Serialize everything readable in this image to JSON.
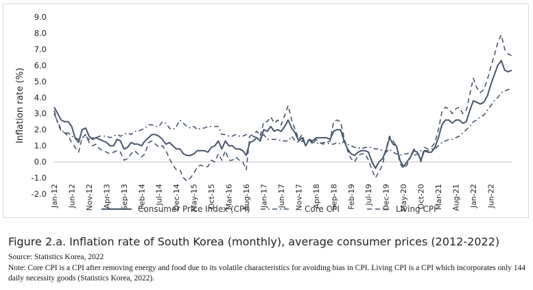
{
  "chart_data": {
    "type": "line",
    "ylabel": "Inflation rate (%)",
    "ylim": [
      -2.0,
      9.0
    ],
    "yticks": [
      "9.0",
      "8.0",
      "7.0",
      "6.0",
      "5.0",
      "4.0",
      "3.0",
      "2.0",
      "1.0",
      "0.0",
      "-1.0",
      "-2.0"
    ],
    "x_start": "Jan-12",
    "x_tick_labels": [
      "Jan-12",
      "Jun-12",
      "Nov-12",
      "Apr-13",
      "Sep-13",
      "Feb-14",
      "Jul-14",
      "Dec-14",
      "May-15",
      "Oct-15",
      "Mar-16",
      "Aug-16",
      "Jan-17",
      "Jun-17",
      "Nov-17",
      "Apr-18",
      "Sep-18",
      "Feb-19",
      "Jul-19",
      "Dec-19",
      "May-20",
      "Oct-20",
      "Mar-21",
      "Aug-21",
      "Jan-22",
      "Jun-22"
    ],
    "grid": false,
    "legend_position": "bottom",
    "series": [
      {
        "name": "Consumer Price Index (CPI)",
        "color": "#44546a",
        "values": [
          3.4,
          3.0,
          2.6,
          2.5,
          2.5,
          2.2,
          1.5,
          1.2,
          2.0,
          2.1,
          1.6,
          1.4,
          1.5,
          1.4,
          1.3,
          1.2,
          1.0,
          1.0,
          1.4,
          1.3,
          0.8,
          0.9,
          1.2,
          1.1,
          1.1,
          1.0,
          1.3,
          1.5,
          1.7,
          1.7,
          1.6,
          1.4,
          1.1,
          1.2,
          1.0,
          0.8,
          0.8,
          0.5,
          0.4,
          0.4,
          0.5,
          0.7,
          0.7,
          0.7,
          0.6,
          0.9,
          1.0,
          1.3,
          0.8,
          1.3,
          1.0,
          1.0,
          0.8,
          0.8,
          0.7,
          0.4,
          1.2,
          1.3,
          1.5,
          1.3,
          2.0,
          1.9,
          2.2,
          1.9,
          2.0,
          1.9,
          2.2,
          2.6,
          2.1,
          1.8,
          1.3,
          1.5,
          1.0,
          1.4,
          1.3,
          1.5,
          1.5,
          1.5,
          1.5,
          1.4,
          1.9,
          2.0,
          2.0,
          1.3,
          0.8,
          0.5,
          0.4,
          0.6,
          0.7,
          0.7,
          0.6,
          0.0,
          -0.4,
          0.0,
          0.2,
          0.7,
          1.5,
          1.1,
          1.0,
          0.1,
          -0.3,
          0.0,
          0.3,
          0.7,
          0.6,
          0.1,
          0.7,
          0.6,
          0.6,
          0.9,
          1.5,
          2.3,
          2.6,
          2.6,
          2.4,
          2.6,
          2.6,
          2.4,
          2.5,
          3.2,
          3.8,
          3.7,
          3.6,
          3.7,
          4.1,
          4.8,
          5.4,
          6.0,
          6.3,
          5.7,
          5.6,
          5.7
        ]
      },
      {
        "name": "Core CPI",
        "color": "#44546a",
        "dash": "dash-dot",
        "values": [
          3.0,
          2.5,
          2.0,
          1.8,
          1.8,
          1.6,
          1.5,
          1.4,
          1.5,
          1.6,
          1.4,
          1.5,
          1.5,
          1.6,
          1.6,
          1.6,
          1.5,
          1.6,
          1.7,
          1.6,
          1.7,
          1.8,
          1.7,
          1.9,
          1.9,
          2.0,
          2.1,
          2.3,
          2.3,
          2.2,
          2.2,
          2.5,
          2.4,
          2.1,
          2.0,
          2.2,
          2.6,
          2.4,
          2.2,
          2.1,
          2.2,
          2.0,
          2.1,
          2.1,
          2.2,
          2.2,
          2.2,
          2.2,
          1.7,
          1.7,
          1.6,
          1.6,
          1.7,
          1.6,
          1.6,
          1.7,
          1.5,
          1.6,
          1.5,
          1.5,
          1.7,
          1.4,
          1.4,
          1.4,
          1.4,
          1.3,
          1.3,
          1.3,
          1.6,
          1.3,
          1.2,
          1.3,
          1.2,
          1.4,
          1.2,
          1.2,
          1.1,
          1.2,
          1.2,
          1.1,
          1.1,
          1.2,
          1.1,
          1.3,
          1.1,
          1.0,
          0.9,
          0.9,
          0.8,
          0.9,
          0.9,
          0.9,
          0.8,
          0.8,
          0.7,
          0.6,
          0.8,
          0.6,
          0.5,
          0.4,
          0.5,
          0.5,
          0.6,
          0.4,
          0.5,
          0.7,
          0.7,
          0.7,
          0.8,
          0.8,
          1.0,
          1.2,
          1.3,
          1.4,
          1.4,
          1.5,
          1.6,
          1.8,
          2.0,
          2.2,
          2.5,
          2.6,
          2.8,
          2.9,
          3.2,
          3.5,
          3.8,
          4.0,
          4.3,
          4.4,
          4.5,
          4.5
        ]
      },
      {
        "name": "Living CPI",
        "color": "#44546a",
        "dash": "dash",
        "values": [
          3.2,
          2.4,
          1.9,
          1.8,
          1.6,
          1.2,
          0.9,
          0.6,
          1.5,
          1.7,
          1.2,
          1.0,
          1.1,
          0.8,
          0.7,
          0.6,
          0.5,
          0.6,
          0.7,
          0.6,
          0.1,
          0.2,
          0.5,
          0.7,
          0.5,
          0.3,
          0.5,
          1.2,
          1.3,
          1.1,
          0.9,
          1.0,
          0.7,
          0.2,
          -0.2,
          -0.5,
          -0.5,
          -1.0,
          -1.2,
          -1.0,
          -0.7,
          -0.3,
          -0.2,
          -0.3,
          -0.3,
          0.1,
          0.0,
          0.5,
          0.1,
          0.7,
          0.1,
          0.1,
          0.3,
          0.1,
          0.0,
          -0.5,
          1.6,
          1.7,
          1.9,
          1.6,
          2.5,
          2.5,
          2.8,
          2.4,
          2.6,
          2.3,
          2.9,
          3.5,
          2.6,
          2.0,
          1.4,
          1.7,
          1.0,
          1.4,
          1.1,
          1.4,
          1.2,
          1.1,
          1.2,
          1.3,
          2.5,
          2.6,
          2.5,
          1.5,
          0.7,
          0.2,
          0.0,
          0.4,
          0.5,
          0.5,
          0.1,
          -0.5,
          -1.0,
          -0.6,
          -0.2,
          0.8,
          1.6,
          1.3,
          1.0,
          -0.1,
          -0.4,
          -0.2,
          0.3,
          0.8,
          0.6,
          0.0,
          0.9,
          0.8,
          0.9,
          1.2,
          2.0,
          3.1,
          3.4,
          3.3,
          3.0,
          3.3,
          3.4,
          3.0,
          3.2,
          4.2,
          5.2,
          4.6,
          4.3,
          4.5,
          5.1,
          5.9,
          6.6,
          7.4,
          7.9,
          7.0,
          6.7,
          6.6
        ]
      }
    ]
  },
  "caption": {
    "title": "Figure 2.a. Inflation rate of South Korea (monthly), average consumer prices (2012-2022)",
    "source": "Source: Statistics Korea, 2022",
    "note": "Note: Core CPI is a CPI after removing energy and food due to its volatile characteristics for avoiding bias in CPI. Living CPI is a CPI which incorporates only 144 daily necessity goods (Statistics Korea, 2022)."
  }
}
